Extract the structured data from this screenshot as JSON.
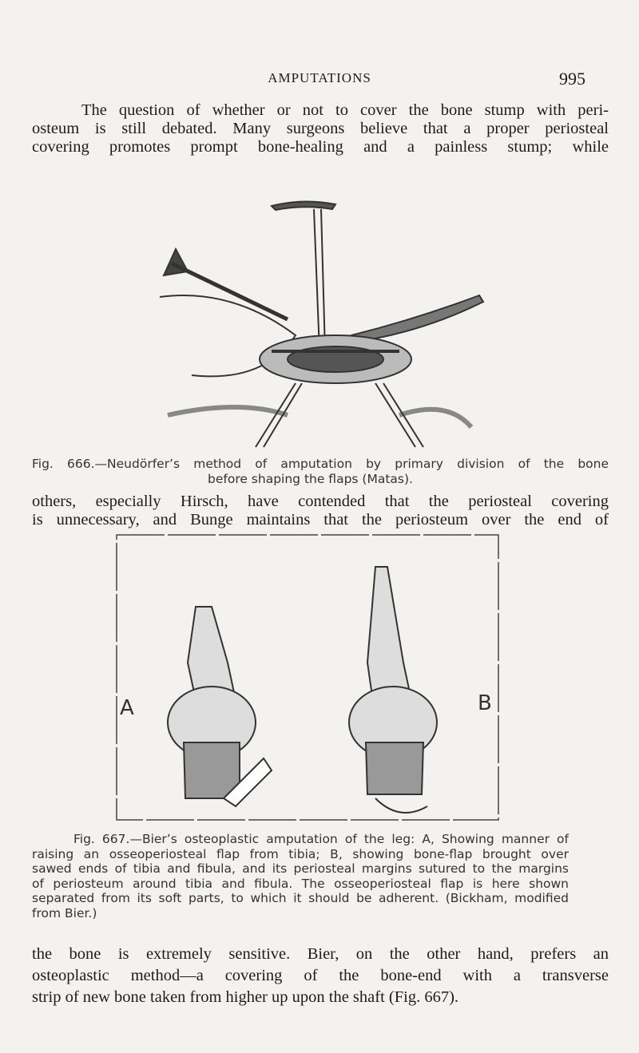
{
  "header": {
    "title": "AMPUTATIONS",
    "page_number": "995"
  },
  "paragraphs": [
    {
      "lines": [
        "The question of whether or not to cover the bone stump with peri-",
        "osteum is still debated. Many surgeons believe that a proper periosteal",
        "covering promotes prompt bone-healing and a painless stump; while"
      ]
    },
    {
      "lines": [
        "others, especially Hirsch, have contended that the periosteal covering",
        "is unnecessary, and Bunge maintains that the periosteum over the end of"
      ]
    },
    {
      "lines": [
        "the bone is extremely sensitive. Bier, on the other hand, prefers an",
        "osteoplastic method—a covering of the bone-end with a transverse",
        "strip of new bone taken from higher up upon the shaft (Fig. 667)."
      ]
    }
  ],
  "figures": [
    {
      "caption_lines": [
        "Fig. 666.—Neudörfer’s method of amputation by primary division of the bone",
        "before shaping the flaps (Matas)."
      ]
    },
    {
      "labels": [
        "A",
        "B"
      ],
      "caption_lines": [
        "Fig. 667.—Bier’s osteoplastic amputation of the leg: A, Showing manner of",
        "raising an osseoperiosteal flap from tibia; B, showing bone-flap brought over",
        "sawed ends of tibia and fibula, and its periosteal margins sutured to the margins",
        "of periosteum around tibia and fibula. The osseoperiosteal flap is here shown",
        "separated from its soft parts, to which it should be adherent. (Bickham, modified",
        "from Bier.)"
      ]
    }
  ]
}
